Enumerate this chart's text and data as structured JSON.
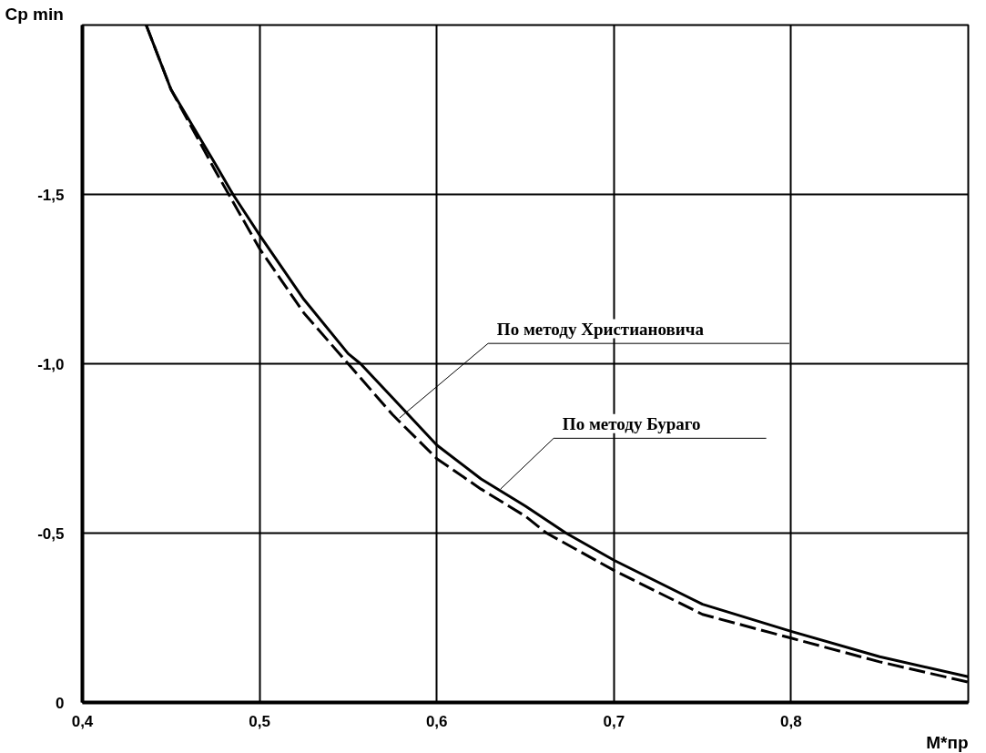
{
  "chart_data": {
    "type": "line",
    "xlabel": "M*пр",
    "ylabel": "Cp min",
    "xlim": [
      0.4,
      0.9
    ],
    "ylim": [
      0,
      -2.0
    ],
    "xticks": [
      {
        "value": 0.4,
        "label": "0,4"
      },
      {
        "value": 0.5,
        "label": "0,5"
      },
      {
        "value": 0.6,
        "label": "0,6"
      },
      {
        "value": 0.7,
        "label": "0,7"
      },
      {
        "value": 0.8,
        "label": "0,8"
      }
    ],
    "yticks": [
      0,
      {
        "value": -0.5,
        "label": "-0,5"
      },
      {
        "value": -1.0,
        "label": "-1,0"
      },
      {
        "value": -1.5,
        "label": "-1,5"
      }
    ],
    "grid": true,
    "marker": "none",
    "series": [
      {
        "color": "#000000",
        "line_style": "solid",
        "x": [
          0.436,
          0.45,
          0.475,
          0.485,
          0.5,
          0.525,
          0.55,
          0.557,
          0.575,
          0.6,
          0.625,
          0.65,
          0.673,
          0.7,
          0.75,
          0.8,
          0.85,
          0.9
        ],
        "values": [
          -2.0,
          -1.81,
          -1.59,
          -1.5,
          -1.38,
          -1.19,
          -1.03,
          -1.0,
          -0.9,
          -0.76,
          -0.66,
          -0.58,
          -0.5,
          -0.42,
          -0.29,
          -0.21,
          -0.135,
          -0.076
        ]
      },
      {
        "color": "#000000",
        "line_style": "dashed",
        "x": [
          0.436,
          0.45,
          0.475,
          0.5,
          0.525,
          0.55,
          0.575,
          0.6,
          0.625,
          0.65,
          0.662,
          0.7,
          0.75,
          0.8,
          0.85,
          0.9
        ],
        "values": [
          -2.0,
          -1.81,
          -1.57,
          -1.34,
          -1.15,
          -1.0,
          -0.85,
          -0.72,
          -0.63,
          -0.55,
          -0.5,
          -0.39,
          -0.26,
          -0.19,
          -0.12,
          -0.06
        ]
      }
    ],
    "annotations": [
      {
        "text": "По методу Христиановича",
        "x": 0.579,
        "y": -0.84
      },
      {
        "text": "По методу Бураго",
        "x": 0.636,
        "y": -0.63
      }
    ]
  }
}
